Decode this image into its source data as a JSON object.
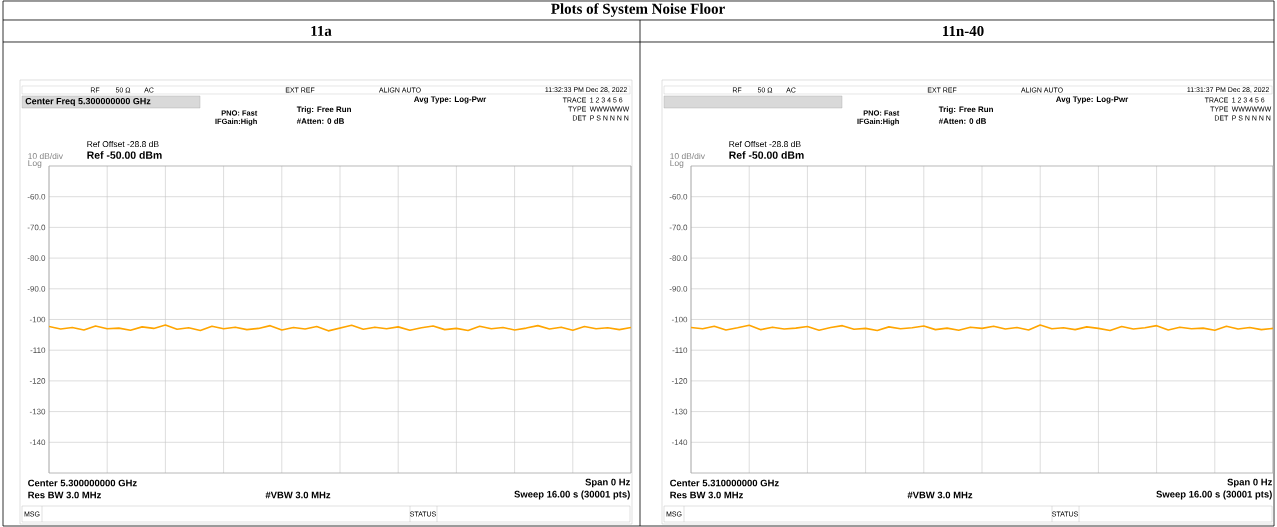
{
  "chart_data": [
    {
      "type": "line",
      "title": "11a",
      "subtitle": "Center Freq 5.300000000 GHz",
      "annotations": [
        "RF",
        "50 Ω",
        "AC",
        "EXT REF",
        "ALIGN AUTO",
        "11:32:33 PM Dec 28, 2022",
        "Avg Type: Log-Pwr",
        "PNO: Fast",
        "IFGain:High",
        "Trig: Free Run",
        "#Atten: 0 dB",
        "TRACE",
        "1 2 3 4 5 6",
        "TYPE",
        "WWWWWW",
        "DET",
        "P S N N N N",
        "Ref Offset -28.8 dB",
        "Ref -50.00 dBm",
        "10 dB/div",
        "Log",
        "Center 5.300000000 GHz",
        "Span 0 Hz",
        "Res BW 3.0 MHz",
        "#VBW 3.0 MHz",
        "Sweep  16.00 s (30001 pts)",
        "MSG",
        "STATUS",
        "Plots of System Noise Floor"
      ],
      "categories": [
        null,
        null,
        null,
        null,
        null,
        null,
        null,
        null,
        null,
        null,
        null,
        null,
        null,
        null,
        null,
        null,
        null,
        null,
        null,
        null,
        null,
        null,
        null,
        null,
        null,
        null,
        null,
        null,
        null,
        null,
        null,
        null,
        null,
        null,
        null,
        null,
        null,
        null,
        null,
        null,
        null,
        null,
        null,
        null,
        null,
        null,
        null,
        null,
        null,
        null,
        null
      ],
      "values": [
        -102.3,
        -103.1,
        -102.6,
        -103.4,
        -102.1,
        -103.0,
        -102.8,
        -103.5,
        -102.4,
        -102.9,
        -101.8,
        -103.2,
        -102.7,
        -103.6,
        -102.2,
        -103.0,
        -102.5,
        -103.3,
        -102.9,
        -102.0,
        -103.4,
        -102.6,
        -103.1,
        -102.3,
        -103.7,
        -102.8,
        -101.9,
        -103.2,
        -102.5,
        -103.0,
        -102.4,
        -103.5,
        -102.7,
        -102.1,
        -103.3,
        -102.9,
        -103.6,
        -102.2,
        -103.0,
        -102.6,
        -103.4,
        -102.8,
        -102.0,
        -103.1,
        -102.5,
        -103.5,
        -102.3,
        -103.0,
        -102.7,
        -103.3,
        -102.6
      ],
      "color": "#ffa500",
      "ylim": [
        -150,
        -50
      ],
      "yticks": [
        {
          "value": -60,
          "label": "-60.0"
        },
        {
          "value": -70,
          "label": "-70.0"
        },
        {
          "value": -80,
          "label": "-80.0"
        },
        {
          "value": -90,
          "label": "-90.0"
        },
        {
          "value": -100,
          "label": "-100"
        },
        {
          "value": -110,
          "label": "-110"
        },
        {
          "value": -120,
          "label": "-120"
        },
        {
          "value": -130,
          "label": "-130"
        },
        {
          "value": -140,
          "label": "-140"
        }
      ],
      "grid": true
    },
    {
      "type": "line",
      "title": "11n-40",
      "annotations": [
        "RF",
        "50 Ω",
        "AC",
        "EXT REF",
        "ALIGN AUTO",
        "11:31:37 PM Dec 28, 2022",
        "Avg Type: Log-Pwr",
        "PNO: Fast",
        "IFGain:High",
        "Trig: Free Run",
        "#Atten: 0 dB",
        "TRACE",
        "1 2 3 4 5 6",
        "TYPE",
        "WWWWWW",
        "DET",
        "P S N N N N",
        "Ref Offset -28.8 dB",
        "Ref -50.00 dBm",
        "10 dB/div",
        "Log",
        "Center 5.310000000 GHz",
        "Span 0 Hz",
        "Res BW 3.0 MHz",
        "#VBW 3.0 MHz",
        "Sweep  16.00 s (30001 pts)",
        "MSG",
        "STATUS"
      ],
      "categories": [
        null,
        null,
        null,
        null,
        null,
        null,
        null,
        null,
        null,
        null,
        null,
        null,
        null,
        null,
        null,
        null,
        null,
        null,
        null,
        null,
        null,
        null,
        null,
        null,
        null,
        null,
        null,
        null,
        null,
        null,
        null,
        null,
        null,
        null,
        null,
        null,
        null,
        null,
        null,
        null,
        null,
        null,
        null,
        null,
        null,
        null,
        null,
        null,
        null,
        null,
        null
      ],
      "values": [
        -102.6,
        -103.0,
        -102.2,
        -103.4,
        -102.7,
        -101.9,
        -103.3,
        -102.5,
        -103.1,
        -102.8,
        -102.3,
        -103.5,
        -102.6,
        -102.0,
        -103.2,
        -102.9,
        -103.6,
        -102.4,
        -103.0,
        -102.7,
        -102.1,
        -103.3,
        -102.8,
        -103.5,
        -102.5,
        -102.9,
        -102.2,
        -103.1,
        -102.6,
        -103.4,
        -101.8,
        -103.0,
        -102.7,
        -103.3,
        -102.4,
        -102.9,
        -103.6,
        -102.3,
        -103.1,
        -102.7,
        -102.0,
        -103.4,
        -102.5,
        -103.0,
        -102.8,
        -103.5,
        -102.2,
        -103.1,
        -102.6,
        -103.3,
        -102.9
      ],
      "color": "#ffa500",
      "ylim": [
        -150,
        -50
      ],
      "yticks": [
        {
          "value": -60,
          "label": "-60.0"
        },
        {
          "value": -70,
          "label": "-70.0"
        },
        {
          "value": -80,
          "label": "-80.0"
        },
        {
          "value": -90,
          "label": "-90.0"
        },
        {
          "value": -100,
          "label": "-100"
        },
        {
          "value": -110,
          "label": "-110"
        },
        {
          "value": -120,
          "label": "-120"
        },
        {
          "value": -130,
          "label": "-130"
        },
        {
          "value": -140,
          "label": "-140"
        }
      ],
      "grid": true
    }
  ]
}
